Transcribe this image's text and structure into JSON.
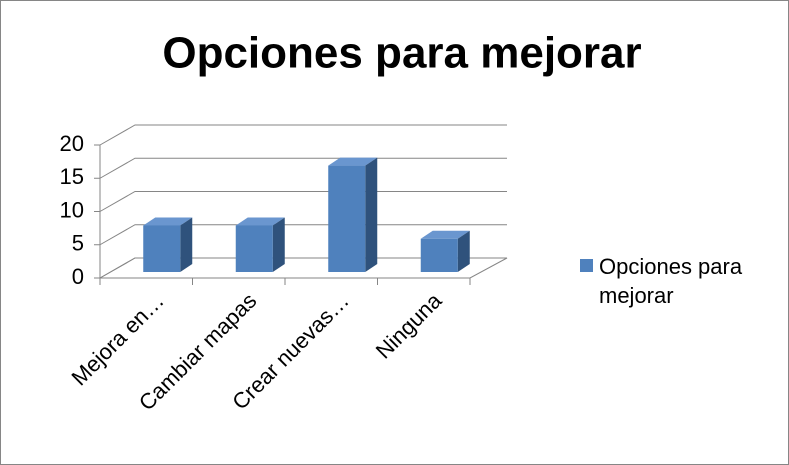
{
  "chart_data": {
    "type": "bar",
    "title": "Opciones para mejorar",
    "categories": [
      "Mejora en…",
      "Cambiar mapas",
      "Crear nuevas…",
      "Ninguna"
    ],
    "series": [
      {
        "name": "Opciones para mejorar",
        "color": "#4f81bd",
        "values": [
          7,
          7,
          16,
          5
        ]
      }
    ],
    "ylim": [
      0,
      20
    ],
    "yticks": [
      0,
      5,
      10,
      15,
      20
    ],
    "grid": true,
    "legend": "right"
  }
}
